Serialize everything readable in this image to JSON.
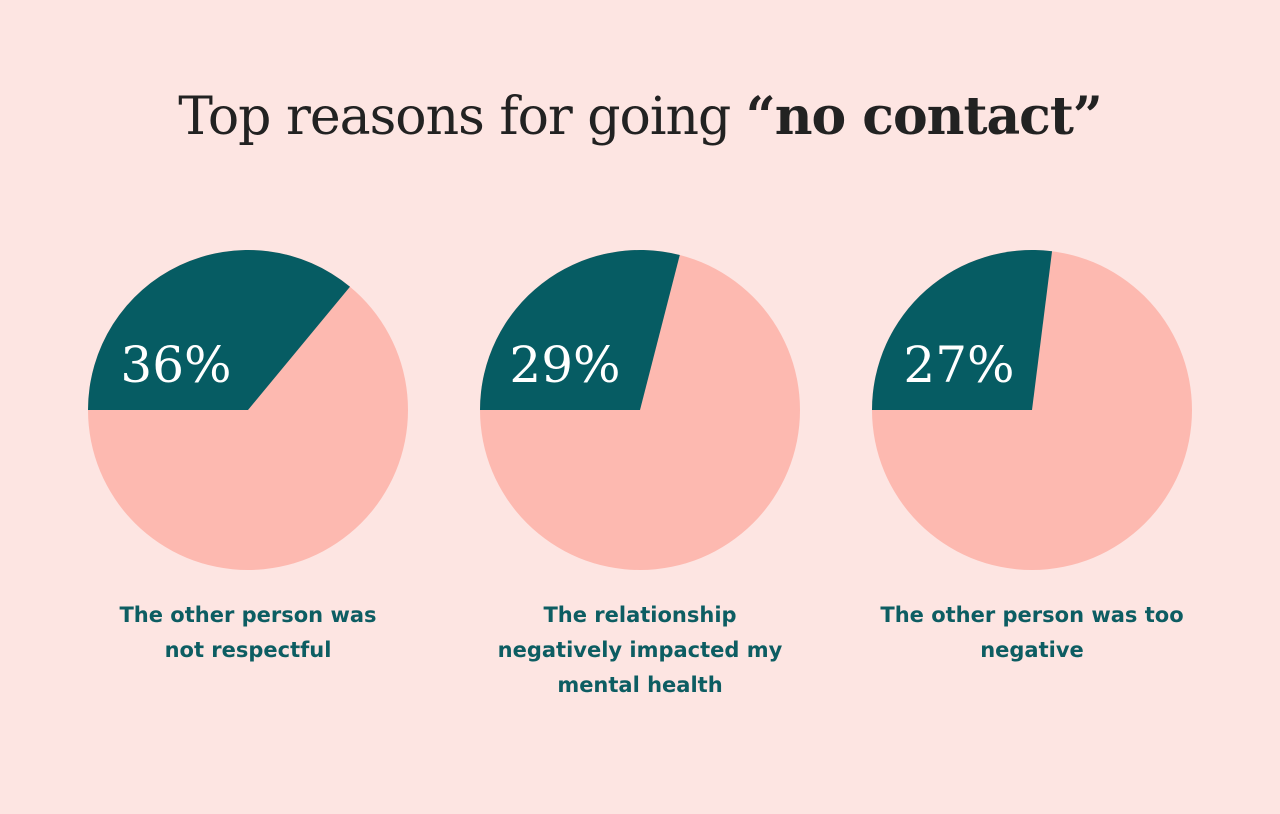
{
  "title": {
    "prefix": "Top reasons for going ",
    "emphasis": "“no contact”"
  },
  "colors": {
    "background": "#FDE5E2",
    "highlight": "#065C63",
    "remainder": "#FDB9B0",
    "caption": "#0D5D62"
  },
  "chart_data": [
    {
      "type": "pie",
      "value": 36,
      "label": "36%",
      "caption_lines": [
        "The other person was",
        "not respectful"
      ]
    },
    {
      "type": "pie",
      "value": 29,
      "label": "29%",
      "caption_lines": [
        "The relationship",
        "negatively impacted my",
        "mental health"
      ]
    },
    {
      "type": "pie",
      "value": 27,
      "label": "27%",
      "caption_lines": [
        "The other person was too",
        "negative"
      ]
    }
  ]
}
